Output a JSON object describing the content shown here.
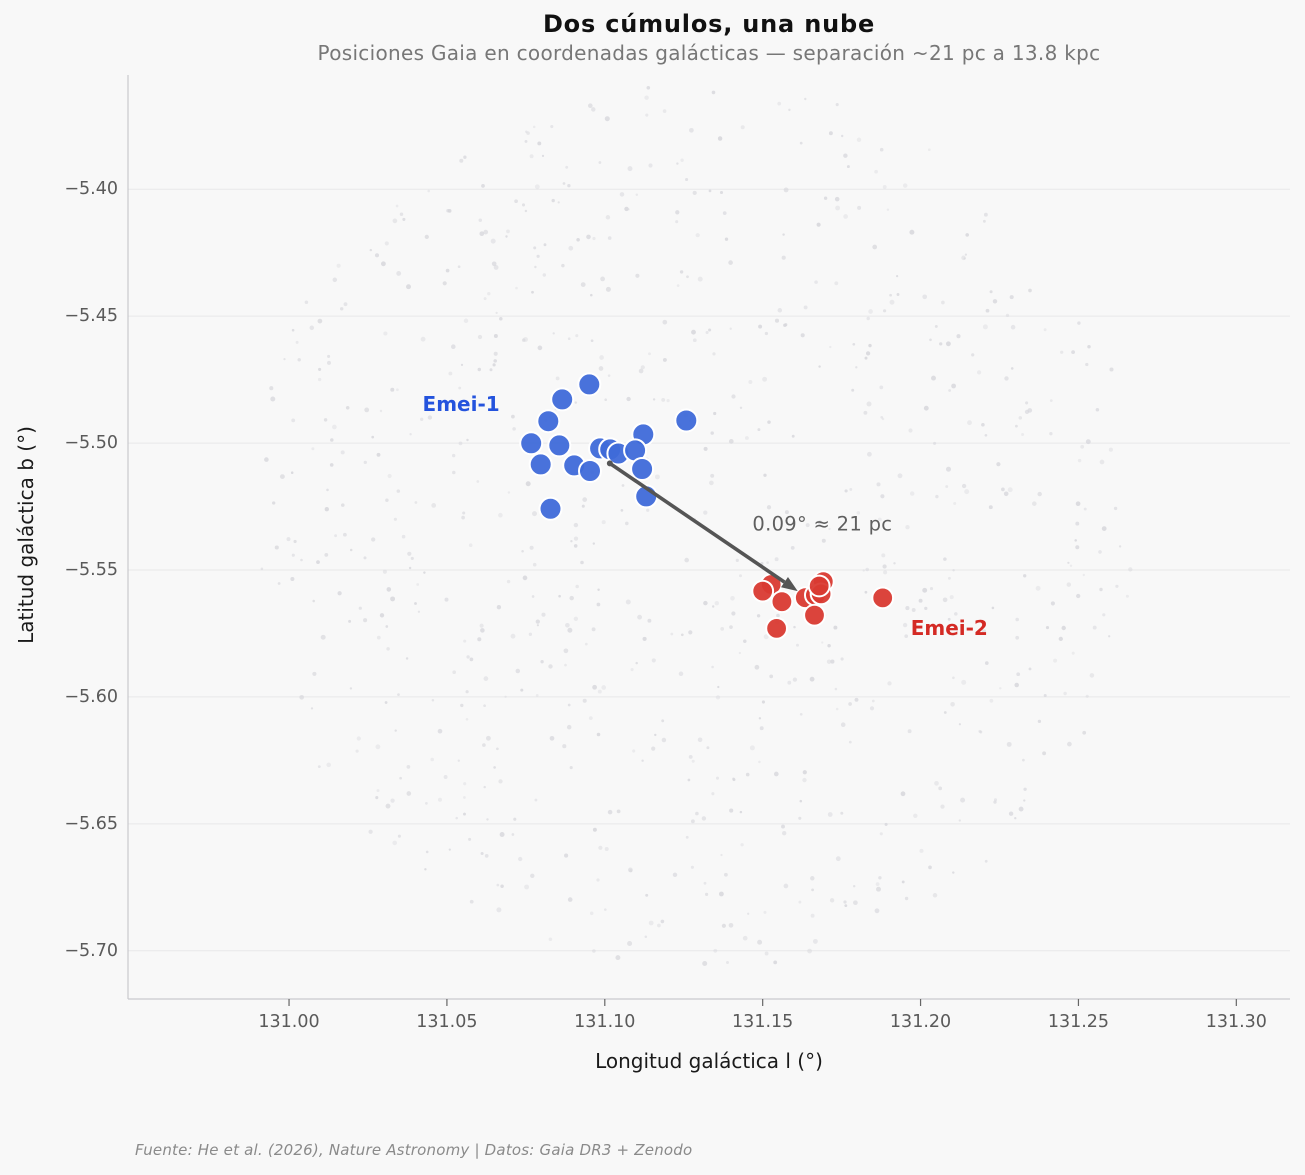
{
  "chart_data": {
    "type": "scatter",
    "title": "Dos cúmulos, una nube",
    "subtitle": "Posiciones Gaia en coordenadas galácticas — separación ~21 pc a 13.8 kpc",
    "xlabel": "Longitud galáctica l (°)",
    "ylabel": "Latitud galáctica b (°)",
    "xlim": [
      130.949,
      131.317
    ],
    "ylim": [
      -5.719,
      -5.355
    ],
    "xticks": [
      131.0,
      131.05,
      131.1,
      131.15,
      131.2,
      131.25,
      131.3
    ],
    "yticks": [
      -5.4,
      -5.45,
      -5.5,
      -5.55,
      -5.6,
      -5.65,
      -5.7
    ],
    "grid": "horizontal-only",
    "legend_position": "none",
    "series": [
      {
        "name": "Emei-1",
        "marker_color": "#3f6ad9",
        "label_color": "#2453dd",
        "label_pos": [
          131.0545,
          -5.4847
        ],
        "points": [
          [
            131.0951,
            -5.4769
          ],
          [
            131.0865,
            -5.4828
          ],
          [
            131.0821,
            -5.4914
          ],
          [
            131.1258,
            -5.4911
          ],
          [
            131.1122,
            -5.4966
          ],
          [
            131.0767,
            -5.5001
          ],
          [
            131.0856,
            -5.5009
          ],
          [
            131.0985,
            -5.5021
          ],
          [
            131.1017,
            -5.5025
          ],
          [
            131.1043,
            -5.5041
          ],
          [
            131.1096,
            -5.5029
          ],
          [
            131.0903,
            -5.5088
          ],
          [
            131.0797,
            -5.5084
          ],
          [
            131.1118,
            -5.5102
          ],
          [
            131.0953,
            -5.511
          ],
          [
            131.1131,
            -5.521
          ],
          [
            131.0828,
            -5.5259
          ]
        ]
      },
      {
        "name": "Emei-2",
        "marker_color": "#d93a32",
        "label_color": "#d42a24",
        "label_pos": [
          131.2091,
          -5.573
        ],
        "points": [
          [
            131.1527,
            -5.5557
          ],
          [
            131.15,
            -5.5583
          ],
          [
            131.1561,
            -5.5625
          ],
          [
            131.1635,
            -5.5609
          ],
          [
            131.1667,
            -5.5599
          ],
          [
            131.1692,
            -5.5546
          ],
          [
            131.1685,
            -5.5594
          ],
          [
            131.1679,
            -5.5563
          ],
          [
            131.1664,
            -5.5678
          ],
          [
            131.1544,
            -5.573
          ],
          [
            131.188,
            -5.561
          ]
        ]
      }
    ],
    "annotation": {
      "text": "0.09° ≈ 21 pc",
      "text_pos": [
        131.1689,
        -5.532
      ],
      "arrow_from": [
        131.1016,
        -5.508
      ],
      "arrow_to": [
        131.1611,
        -5.5583
      ],
      "arrow_color": "#555555"
    },
    "background_cloud": {
      "description": "diffuse cloud of faint gray dots behind both clusters",
      "dot_count": 800,
      "center": [
        131.1283,
        -5.532
      ],
      "radius_px": 447,
      "color": "#d6d6db",
      "seed": 42
    }
  },
  "footer": {
    "source_note": "Fuente: He et al. (2026), Nature Astronomy | Datos: Gaia DR3 + Zenodo"
  },
  "colors": {
    "page_bg": "#f8f8f8",
    "grid": "#e7e7e9",
    "spine": "#c9c9cd",
    "tick_label": "#5a5a5a",
    "axis_label": "#1a1a1a",
    "title": "#111111",
    "subtitle": "#777777",
    "footer": "#8a8a8a"
  }
}
